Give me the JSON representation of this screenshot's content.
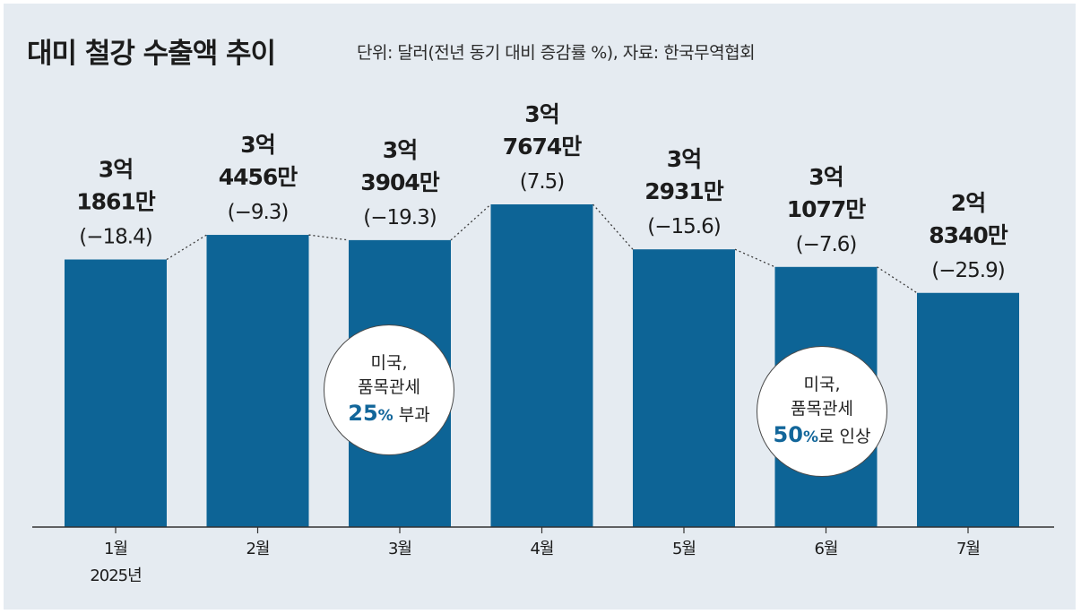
{
  "chart_data": {
    "type": "bar",
    "title": "대미 철강 수출액 추이",
    "subtitle": "단위: 달러(전년 동기 대비 증감률 %), 자료: 한국무역협회",
    "categories": [
      "1월",
      "2월",
      "3월",
      "4월",
      "5월",
      "6월",
      "7월"
    ],
    "year_label": "2025년",
    "values": [
      318610000,
      344560000,
      339040000,
      376740000,
      329310000,
      310770000,
      283400000
    ],
    "change_pct": [
      -18.4,
      -9.3,
      -19.3,
      7.5,
      -15.6,
      -7.6,
      -25.9
    ],
    "value_labels": [
      [
        "3억",
        "1861만"
      ],
      [
        "3억",
        "4456만"
      ],
      [
        "3억",
        "3904만"
      ],
      [
        "3억",
        "7674만"
      ],
      [
        "3억",
        "2931만"
      ],
      [
        "3억",
        "1077만"
      ],
      [
        "2억",
        "8340만"
      ]
    ],
    "change_labels": [
      "(−18.4)",
      "(−9.3)",
      "(−19.3)",
      "(7.5)",
      "(−15.6)",
      "(−7.6)",
      "(−25.9)"
    ],
    "bar_color": "#0d6496",
    "connector": "dotted",
    "annotations": [
      {
        "after_category": "3월",
        "line1": "미국,",
        "line2": "품목관세",
        "highlight": "25",
        "unit": "%",
        "rest": " 부과"
      },
      {
        "after_category": "6월",
        "line1": "미국,",
        "line2": "품목관세",
        "highlight": "50",
        "unit": "%",
        "rest": "로 인상"
      }
    ]
  }
}
